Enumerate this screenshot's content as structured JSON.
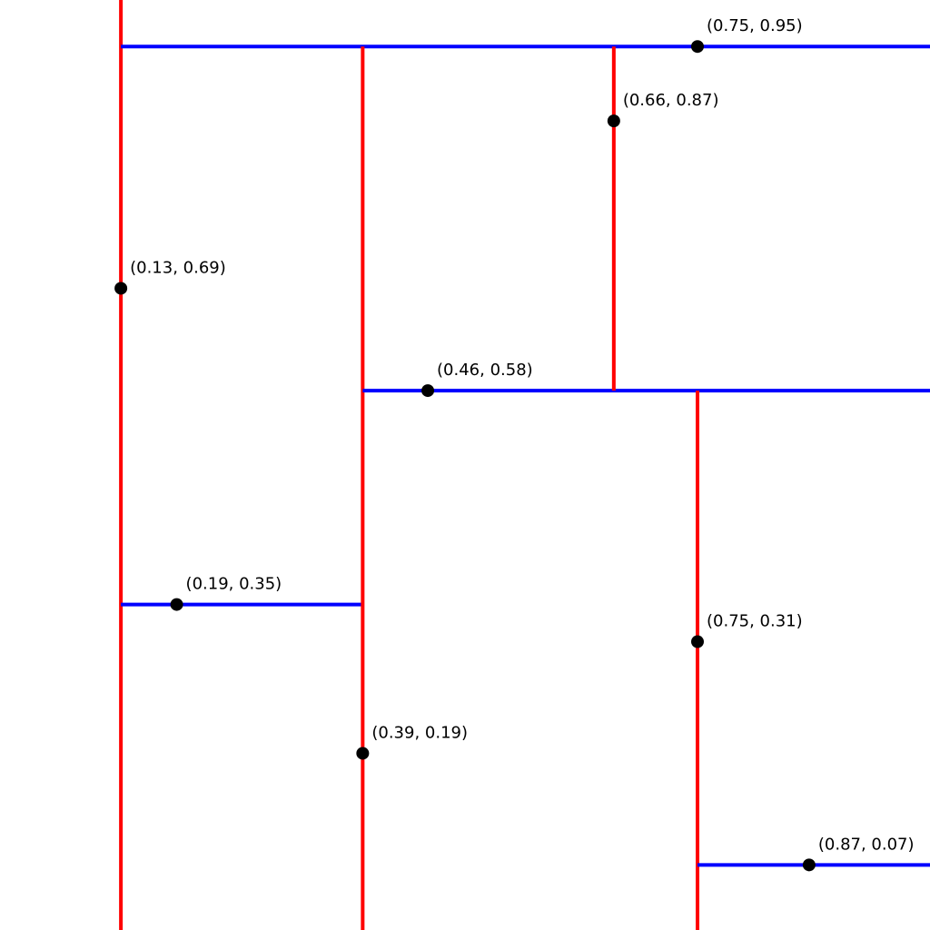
{
  "colors": {
    "vertical_split": "#ff0000",
    "horizontal_split": "#0000ff",
    "point": "#000000",
    "background": "#ffffff"
  },
  "points": [
    {
      "id": "p1",
      "x": 0.13,
      "y": 0.69,
      "split": "vertical",
      "label": "(0.13, 0.69)"
    },
    {
      "id": "p2",
      "x": 0.75,
      "y": 0.95,
      "split": "horizontal",
      "label": "(0.75, 0.95)"
    },
    {
      "id": "p3",
      "x": 0.19,
      "y": 0.35,
      "split": "horizontal",
      "label": "(0.19, 0.35)"
    },
    {
      "id": "p4",
      "x": 0.39,
      "y": 0.19,
      "split": "vertical",
      "label": "(0.39, 0.19)"
    },
    {
      "id": "p5",
      "x": 0.46,
      "y": 0.58,
      "split": "horizontal",
      "label": "(0.46, 0.58)"
    },
    {
      "id": "p6",
      "x": 0.66,
      "y": 0.87,
      "split": "vertical",
      "label": "(0.66, 0.87)"
    },
    {
      "id": "p7",
      "x": 0.75,
      "y": 0.31,
      "split": "vertical",
      "label": "(0.75, 0.31)"
    },
    {
      "id": "p8",
      "x": 0.87,
      "y": 0.07,
      "split": "horizontal",
      "label": "(0.87, 0.07)"
    }
  ],
  "splits": [
    {
      "point": "p1",
      "orientation": "vertical",
      "at": 0.13,
      "from": 0.0,
      "to": 1.0
    },
    {
      "point": "p2",
      "orientation": "horizontal",
      "at": 0.95,
      "from": 0.13,
      "to": 1.0
    },
    {
      "point": "p3",
      "orientation": "horizontal",
      "at": 0.35,
      "from": 0.13,
      "to": 0.39
    },
    {
      "point": "p4",
      "orientation": "vertical",
      "at": 0.39,
      "from": 0.0,
      "to": 0.95
    },
    {
      "point": "p5",
      "orientation": "horizontal",
      "at": 0.58,
      "from": 0.39,
      "to": 1.0
    },
    {
      "point": "p6",
      "orientation": "vertical",
      "at": 0.66,
      "from": 0.58,
      "to": 0.95
    },
    {
      "point": "p7",
      "orientation": "vertical",
      "at": 0.75,
      "from": 0.0,
      "to": 0.58
    },
    {
      "point": "p8",
      "orientation": "horizontal",
      "at": 0.07,
      "from": 0.75,
      "to": 1.0
    }
  ]
}
